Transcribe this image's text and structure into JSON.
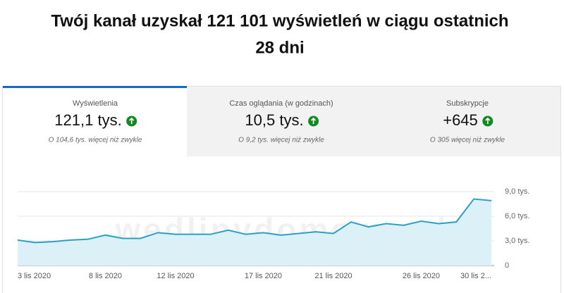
{
  "header": {
    "title_line1": "Twój kanał uzyskał 121 101 wyświetleń w ciągu ostatnich",
    "title_line2": "28 dni"
  },
  "tabs": [
    {
      "label": "Wyświetlenia",
      "value": "121,1 tys.",
      "note": "O 104,6 tys. więcej niż zwykle"
    },
    {
      "label": "Czas oglądania (w godzinach)",
      "value": "10,5 tys.",
      "note": "O 9,2 tys. więcej niż zwykle"
    },
    {
      "label": "Subskrypcje",
      "value": "+645",
      "note": "O 305 więcej niż zwykle"
    }
  ],
  "watermark": "wedlinydomowe.pl",
  "chart_data": {
    "type": "area",
    "categories": [
      "3 lis 2020",
      null,
      null,
      null,
      null,
      "8 lis 2020",
      null,
      null,
      null,
      "12 lis 2020",
      null,
      null,
      null,
      null,
      "17 lis 2020",
      null,
      null,
      null,
      "21 lis 2020",
      null,
      null,
      null,
      null,
      "26 lis 2020",
      null,
      null,
      null,
      "30 lis 2..."
    ],
    "values": [
      3.1,
      2.8,
      2.9,
      3.1,
      3.2,
      3.7,
      3.3,
      3.3,
      4.0,
      3.8,
      3.8,
      3.8,
      4.3,
      3.8,
      4.0,
      3.7,
      3.9,
      4.1,
      3.9,
      5.3,
      4.7,
      5.1,
      4.9,
      5.4,
      5.1,
      5.3,
      8.1,
      7.9
    ],
    "color": "#2aa0c6",
    "fill": "#dcf0f7",
    "ylim": [
      0,
      9
    ],
    "yticks": [
      0,
      {
        "value": 3,
        "label": "3,0 tys."
      },
      {
        "value": 6,
        "label": "6,0 tys."
      },
      {
        "value": 9,
        "label": "9,0 tys."
      }
    ],
    "grid": true
  }
}
